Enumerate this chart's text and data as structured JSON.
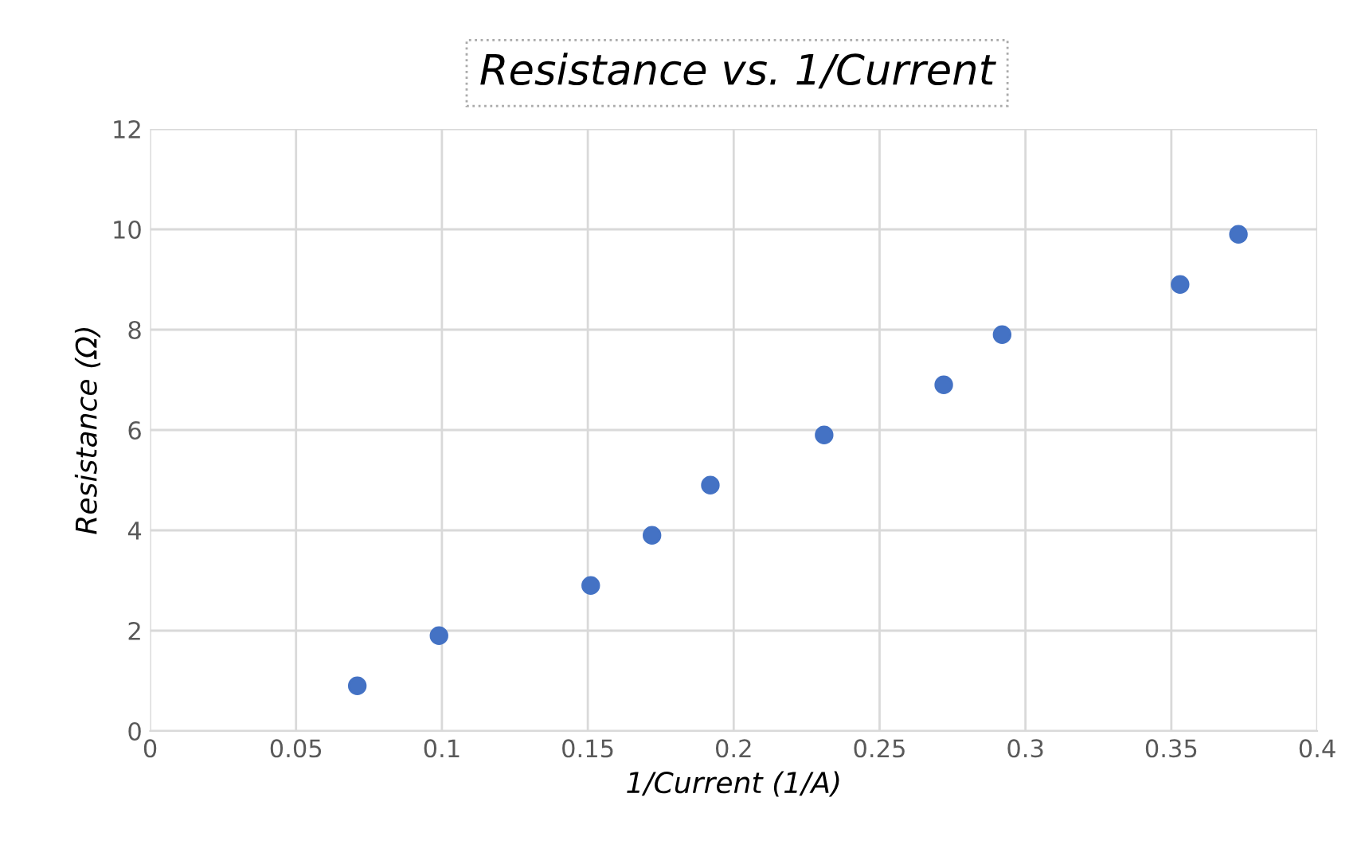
{
  "chart_data": {
    "type": "scatter",
    "title": "Resistance vs. 1/Current",
    "xlabel": "1/Current (1/A)",
    "ylabel": "Resistance (Ω)",
    "series": [
      {
        "color": "#4472c4",
        "x": [
          0.071,
          0.099,
          0.151,
          0.172,
          0.192,
          0.231,
          0.272,
          0.292,
          0.353,
          0.373
        ],
        "values": [
          0.9,
          1.9,
          2.9,
          3.9,
          4.9,
          5.9,
          6.9,
          7.9,
          8.9,
          9.9
        ]
      }
    ],
    "xlim": [
      0,
      0.4
    ],
    "xticks": [
      0,
      0.05,
      0.1,
      0.15,
      0.2,
      0.25,
      0.3,
      0.35,
      0.4
    ],
    "ylim": [
      0,
      12
    ],
    "yticks": [
      0,
      2,
      4,
      6,
      8,
      10,
      12
    ],
    "grid": true,
    "marker": "circle",
    "legend": false
  }
}
